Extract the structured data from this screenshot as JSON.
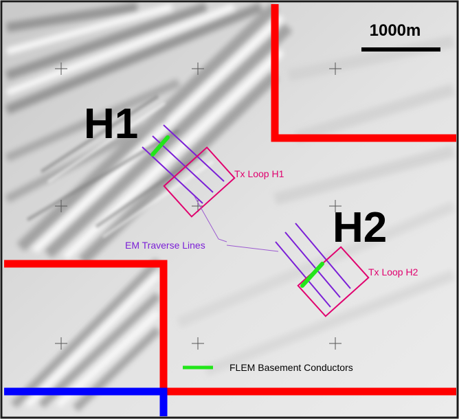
{
  "map": {
    "scale_bar_label": "1000m",
    "target_labels": [
      "H1",
      "H2"
    ],
    "tx_loop_labels": [
      "Tx Loop H1",
      "Tx Loop H2"
    ],
    "traverse_label": "EM Traverse Lines",
    "legend": {
      "label": "FLEM Basement Conductors",
      "swatch_color": "#22e61a"
    },
    "colors": {
      "boundary_red": "#ff0000",
      "boundary_blue": "#0000ff",
      "tx_loop": "#e0006e",
      "traverse": "#7b1fd6",
      "conductor": "#22e61a"
    }
  }
}
